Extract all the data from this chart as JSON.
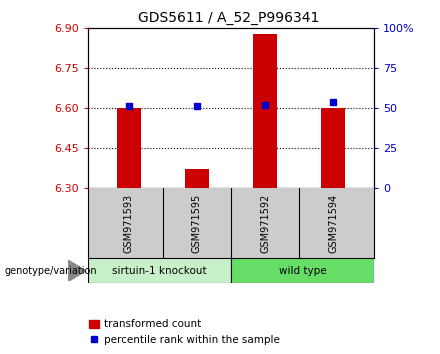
{
  "title": "GDS5611 / A_52_P996341",
  "samples": [
    "GSM971593",
    "GSM971595",
    "GSM971592",
    "GSM971594"
  ],
  "red_values": [
    6.6,
    6.37,
    6.88,
    6.6
  ],
  "blue_values_pct": [
    51,
    51,
    52,
    54
  ],
  "ylim_left": [
    6.3,
    6.9
  ],
  "ylim_right": [
    0,
    100
  ],
  "yticks_left": [
    6.3,
    6.45,
    6.6,
    6.75,
    6.9
  ],
  "yticks_right": [
    0,
    25,
    50,
    75,
    100
  ],
  "ytick_labels_right": [
    "0",
    "25",
    "50",
    "75",
    "100%"
  ],
  "hlines": [
    6.45,
    6.6,
    6.75
  ],
  "bar_bottom": 6.3,
  "red_color": "#cc0000",
  "blue_color": "#0000cc",
  "group_label": "genotype/variation",
  "group1_label": "sirtuin-1 knockout",
  "group2_label": "wild type",
  "group1_color": "#c8f0c8",
  "group2_color": "#66dd66",
  "legend_labels": [
    "transformed count",
    "percentile rank within the sample"
  ],
  "bar_width": 0.35,
  "xlabel_area_color": "#cccccc",
  "title_fontsize": 10
}
